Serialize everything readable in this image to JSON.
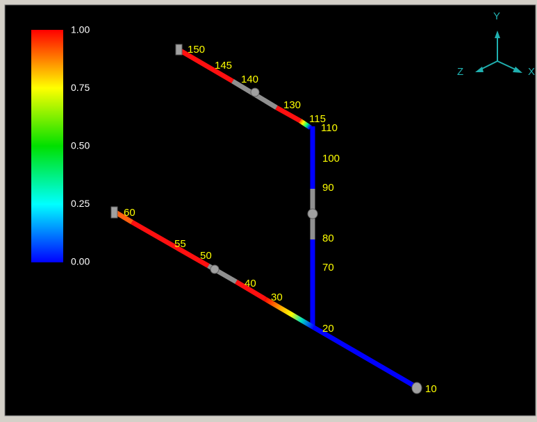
{
  "colorbar": {
    "ticks": [
      "1.00",
      "0.75",
      "0.50",
      "0.25",
      "0.00"
    ]
  },
  "axes": {
    "y": "Y",
    "z": "Z",
    "x": "X"
  },
  "nodes": [
    "150",
    "145",
    "140",
    "130",
    "115",
    "110",
    "100",
    "90",
    "80",
    "70",
    "60",
    "55",
    "50",
    "40",
    "30",
    "20",
    "10"
  ]
}
